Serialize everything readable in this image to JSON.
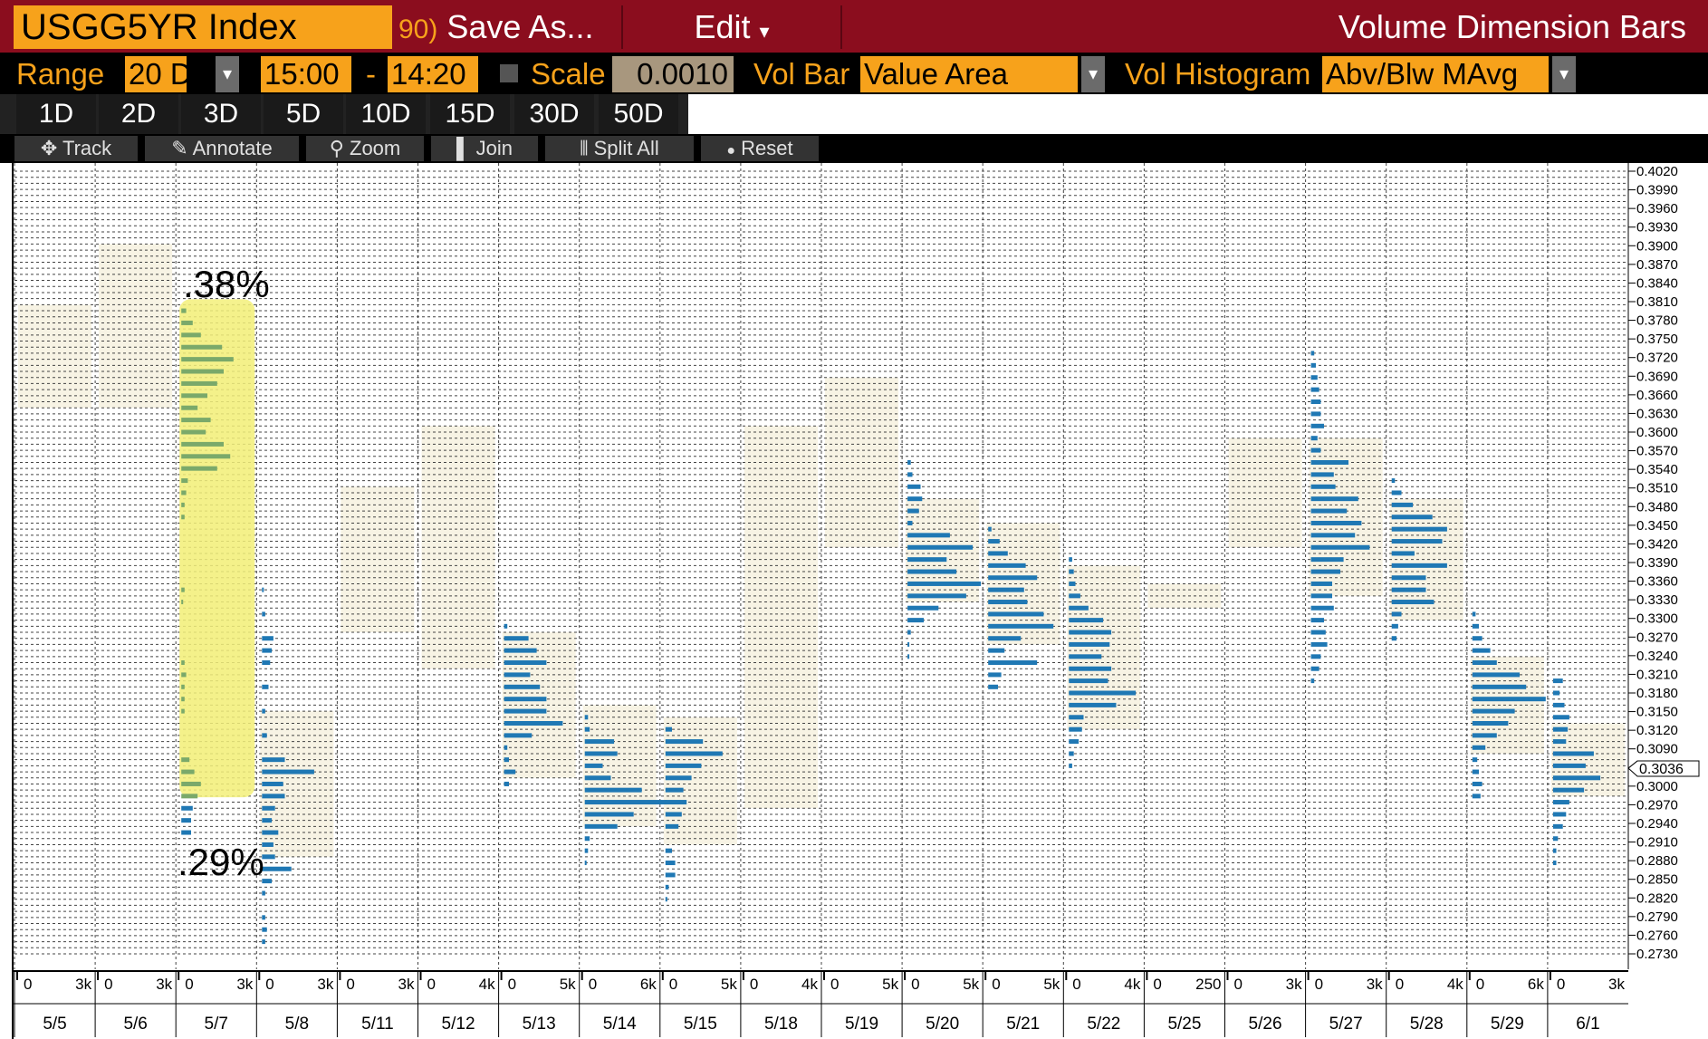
{
  "header": {
    "ticker": "USGG5YR  Index",
    "save_num": "90)",
    "save_label": "Save As...",
    "edit_label": "Edit",
    "edit_arrow": "▾",
    "window_title": "Volume Dimension Bars"
  },
  "settings": {
    "range_label": "Range",
    "range_value": "20 D",
    "time_start": "15:00",
    "dash": "-",
    "time_end": "14:20",
    "scale_label": "Scale",
    "scale_value": "0.0010",
    "vol_bar_label": "Vol Bar",
    "vol_bar_value": "Value Area",
    "vol_hist_label": "Vol Histogram",
    "vol_hist_value": "Abv/Blw MAvg",
    "dropdown_arrow": "▾"
  },
  "periods": [
    "1D",
    "2D",
    "3D",
    "5D",
    "10D",
    "15D",
    "30D",
    "50D"
  ],
  "toolbar": [
    {
      "icon": "crosshair-icon",
      "glyph": "✥",
      "label": "Track"
    },
    {
      "icon": "pencil-icon",
      "glyph": "✎",
      "label": "Annotate"
    },
    {
      "icon": "magnifier-icon",
      "glyph": "⚲",
      "label": "Zoom"
    },
    {
      "icon": "join-icon",
      "glyph": "▌",
      "label": "Join"
    },
    {
      "icon": "split-icon",
      "glyph": "⫴",
      "label": "Split All"
    },
    {
      "icon": "reset-icon",
      "glyph": "●",
      "label": "Reset"
    }
  ],
  "annotations": {
    "high": ".38%",
    "low": ".29%"
  },
  "colors": {
    "accent": "#f7a21b",
    "title_bg": "#8b0d1e",
    "bar": "#1f78b4",
    "highlight": "#f3f07a",
    "highlight_bar": "#7aa96a"
  },
  "chart_data": {
    "type": "bar",
    "orientation": "horizontal-volume-profile",
    "y_axis": {
      "ylim": [
        0.273,
        0.402
      ],
      "tick_step": 0.001,
      "ticks": [
        "0.4020",
        "0.3990",
        "0.3960",
        "0.3930",
        "0.3900",
        "0.3870",
        "0.3840",
        "0.3810",
        "0.3780",
        "0.3750",
        "0.3720",
        "0.3690",
        "0.3660",
        "0.3630",
        "0.3600",
        "0.3570",
        "0.3540",
        "0.3510",
        "0.3480",
        "0.3450",
        "0.3420",
        "0.3390",
        "0.3360",
        "0.3330",
        "0.3300",
        "0.3270",
        "0.3240",
        "0.3210",
        "0.3180",
        "0.3150",
        "0.3120",
        "0.3090",
        "0.3060",
        "0.3000",
        "0.2970",
        "0.2940",
        "0.2910",
        "0.2880",
        "0.2850",
        "0.2820",
        "0.2790",
        "0.2760",
        "0.2730"
      ],
      "current_value": "0.3036"
    },
    "highlight": {
      "date": "5/7",
      "high": 0.38,
      "low": 0.3
    },
    "days": [
      {
        "date": "5/5",
        "scale_labels": [
          "0",
          "3k"
        ],
        "value_area": [
          0.363,
          0.38
        ],
        "bins": []
      },
      {
        "date": "5/6",
        "scale_labels": [
          "0",
          "3k"
        ],
        "value_area": [
          0.363,
          0.39
        ],
        "bins": []
      },
      {
        "date": "5/7",
        "scale_labels": [
          "0",
          "3k"
        ],
        "value_area": [
          0.3,
          0.38
        ],
        "bins": [
          [
            0.379,
            0.3
          ],
          [
            0.377,
            0.7
          ],
          [
            0.375,
            1.2
          ],
          [
            0.373,
            2.5
          ],
          [
            0.371,
            3.2
          ],
          [
            0.369,
            2.6
          ],
          [
            0.367,
            2.2
          ],
          [
            0.365,
            1.6
          ],
          [
            0.363,
            1.0
          ],
          [
            0.361,
            1.8
          ],
          [
            0.359,
            1.5
          ],
          [
            0.357,
            2.6
          ],
          [
            0.355,
            3.0
          ],
          [
            0.353,
            2.2
          ],
          [
            0.351,
            0.4
          ],
          [
            0.349,
            0.3
          ],
          [
            0.347,
            0.2
          ],
          [
            0.345,
            0.2
          ],
          [
            0.333,
            0.2
          ],
          [
            0.331,
            0.1
          ],
          [
            0.321,
            0.2
          ],
          [
            0.319,
            0.3
          ],
          [
            0.317,
            0.2
          ],
          [
            0.315,
            0.2
          ],
          [
            0.313,
            0.2
          ],
          [
            0.305,
            0.5
          ],
          [
            0.303,
            0.8
          ],
          [
            0.301,
            1.2
          ],
          [
            0.299,
            1.0
          ],
          [
            0.297,
            0.7
          ],
          [
            0.295,
            0.6
          ],
          [
            0.293,
            0.6
          ]
        ]
      },
      {
        "date": "5/8",
        "scale_labels": [
          "0",
          "3k"
        ],
        "value_area": [
          0.289,
          0.313
        ],
        "bins": [
          [
            0.333,
            0.1
          ],
          [
            0.329,
            0.2
          ],
          [
            0.325,
            0.7
          ],
          [
            0.323,
            0.6
          ],
          [
            0.321,
            0.5
          ],
          [
            0.317,
            0.4
          ],
          [
            0.313,
            0.2
          ],
          [
            0.309,
            0.3
          ],
          [
            0.305,
            1.4
          ],
          [
            0.303,
            3.2
          ],
          [
            0.301,
            1.3
          ],
          [
            0.299,
            1.4
          ],
          [
            0.297,
            0.8
          ],
          [
            0.295,
            0.6
          ],
          [
            0.293,
            1.0
          ],
          [
            0.291,
            0.7
          ],
          [
            0.289,
            0.8
          ],
          [
            0.287,
            1.8
          ],
          [
            0.285,
            0.6
          ],
          [
            0.283,
            0.2
          ],
          [
            0.279,
            0.2
          ],
          [
            0.277,
            0.3
          ],
          [
            0.275,
            0.2
          ]
        ]
      },
      {
        "date": "5/11",
        "scale_labels": [
          "0",
          "3k"
        ],
        "value_area": [
          0.326,
          0.35
        ],
        "bins": []
      },
      {
        "date": "5/12",
        "scale_labels": [
          "0",
          "4k"
        ],
        "value_area": [
          0.32,
          0.36
        ],
        "bins": []
      },
      {
        "date": "5/13",
        "scale_labels": [
          "0",
          "5k"
        ],
        "value_area": [
          0.302,
          0.326
        ],
        "bins": [
          [
            0.327,
            0.2
          ],
          [
            0.325,
            1.5
          ],
          [
            0.323,
            2.0
          ],
          [
            0.321,
            2.6
          ],
          [
            0.319,
            1.6
          ],
          [
            0.317,
            2.2
          ],
          [
            0.315,
            2.6
          ],
          [
            0.313,
            2.6
          ],
          [
            0.311,
            3.6
          ],
          [
            0.309,
            1.7
          ],
          [
            0.307,
            0.2
          ],
          [
            0.305,
            0.3
          ],
          [
            0.303,
            0.7
          ],
          [
            0.301,
            0.3
          ]
        ]
      },
      {
        "date": "5/14",
        "scale_labels": [
          "0",
          "6k"
        ],
        "value_area": [
          0.294,
          0.314
        ],
        "bins": [
          [
            0.312,
            0.2
          ],
          [
            0.31,
            0.3
          ],
          [
            0.308,
            1.8
          ],
          [
            0.306,
            2.0
          ],
          [
            0.304,
            1.1
          ],
          [
            0.302,
            1.6
          ],
          [
            0.3,
            3.5
          ],
          [
            0.298,
            5.0
          ],
          [
            0.296,
            3.0
          ],
          [
            0.294,
            2.0
          ],
          [
            0.292,
            0.3
          ],
          [
            0.29,
            0.2
          ],
          [
            0.288,
            0.1
          ]
        ]
      },
      {
        "date": "5/15",
        "scale_labels": [
          "0",
          "5k"
        ],
        "value_area": [
          0.291,
          0.312
        ],
        "bins": [
          [
            0.31,
            0.4
          ],
          [
            0.308,
            2.3
          ],
          [
            0.306,
            3.5
          ],
          [
            0.304,
            2.2
          ],
          [
            0.302,
            1.6
          ],
          [
            0.3,
            1.1
          ],
          [
            0.298,
            1.3
          ],
          [
            0.296,
            1.0
          ],
          [
            0.294,
            0.8
          ],
          [
            0.29,
            0.4
          ],
          [
            0.288,
            0.6
          ],
          [
            0.286,
            0.6
          ],
          [
            0.284,
            0.2
          ],
          [
            0.282,
            0.1
          ]
        ]
      },
      {
        "date": "5/18",
        "scale_labels": [
          "0",
          "4k"
        ],
        "value_area": [
          0.297,
          0.36
        ],
        "bins": []
      },
      {
        "date": "5/19",
        "scale_labels": [
          "0",
          "5k"
        ],
        "value_area": [
          0.34,
          0.368
        ],
        "bins": []
      },
      {
        "date": "5/20",
        "scale_labels": [
          "0",
          "5k"
        ],
        "value_area": [
          0.331,
          0.348
        ],
        "bins": [
          [
            0.354,
            0.2
          ],
          [
            0.352,
            0.3
          ],
          [
            0.35,
            0.8
          ],
          [
            0.348,
            0.9
          ],
          [
            0.346,
            0.7
          ],
          [
            0.344,
            0.3
          ],
          [
            0.342,
            2.6
          ],
          [
            0.34,
            4.0
          ],
          [
            0.338,
            2.4
          ],
          [
            0.336,
            3.0
          ],
          [
            0.334,
            4.5
          ],
          [
            0.332,
            3.6
          ],
          [
            0.33,
            1.9
          ],
          [
            0.328,
            1.0
          ],
          [
            0.326,
            0.2
          ],
          [
            0.324,
            0.1
          ],
          [
            0.322,
            0.1
          ]
        ]
      },
      {
        "date": "5/21",
        "scale_labels": [
          "0",
          "5k"
        ],
        "value_area": [
          0.324,
          0.344
        ],
        "bins": [
          [
            0.343,
            0.2
          ],
          [
            0.341,
            0.7
          ],
          [
            0.339,
            1.2
          ],
          [
            0.337,
            2.3
          ],
          [
            0.335,
            3.0
          ],
          [
            0.333,
            2.2
          ],
          [
            0.331,
            2.4
          ],
          [
            0.329,
            3.4
          ],
          [
            0.327,
            4.0
          ],
          [
            0.325,
            2.0
          ],
          [
            0.323,
            1.0
          ],
          [
            0.321,
            3.0
          ],
          [
            0.319,
            0.8
          ],
          [
            0.317,
            0.6
          ]
        ]
      },
      {
        "date": "5/22",
        "scale_labels": [
          "0",
          "4k"
        ],
        "value_area": [
          0.31,
          0.337
        ],
        "bins": [
          [
            0.338,
            0.2
          ],
          [
            0.336,
            0.3
          ],
          [
            0.334,
            0.4
          ],
          [
            0.332,
            0.7
          ],
          [
            0.33,
            1.2
          ],
          [
            0.328,
            2.1
          ],
          [
            0.326,
            2.6
          ],
          [
            0.324,
            2.5
          ],
          [
            0.322,
            2.0
          ],
          [
            0.32,
            2.6
          ],
          [
            0.318,
            2.4
          ],
          [
            0.316,
            4.1
          ],
          [
            0.314,
            2.9
          ],
          [
            0.312,
            0.9
          ],
          [
            0.31,
            0.8
          ],
          [
            0.308,
            0.6
          ],
          [
            0.306,
            0.3
          ],
          [
            0.304,
            0.2
          ]
        ]
      },
      {
        "date": "5/25",
        "scale_labels": [
          "0",
          "250"
        ],
        "value_area": [
          0.33,
          0.334
        ],
        "bins": []
      },
      {
        "date": "5/26",
        "scale_labels": [
          "0",
          "3k"
        ],
        "value_area": [
          0.34,
          0.358
        ],
        "bins": []
      },
      {
        "date": "5/27",
        "scale_labels": [
          "0",
          "3k"
        ],
        "value_area": [
          0.332,
          0.358
        ],
        "bins": [
          [
            0.372,
            0.2
          ],
          [
            0.37,
            0.3
          ],
          [
            0.368,
            0.4
          ],
          [
            0.366,
            0.5
          ],
          [
            0.364,
            0.6
          ],
          [
            0.362,
            0.6
          ],
          [
            0.36,
            0.8
          ],
          [
            0.358,
            0.4
          ],
          [
            0.356,
            0.6
          ],
          [
            0.354,
            2.3
          ],
          [
            0.352,
            1.4
          ],
          [
            0.35,
            1.5
          ],
          [
            0.348,
            2.9
          ],
          [
            0.346,
            2.2
          ],
          [
            0.344,
            3.1
          ],
          [
            0.342,
            2.7
          ],
          [
            0.34,
            3.6
          ],
          [
            0.338,
            2.0
          ],
          [
            0.336,
            1.8
          ],
          [
            0.334,
            1.3
          ],
          [
            0.332,
            1.3
          ],
          [
            0.33,
            1.4
          ],
          [
            0.328,
            0.8
          ],
          [
            0.326,
            0.9
          ],
          [
            0.324,
            1.0
          ],
          [
            0.322,
            0.6
          ],
          [
            0.32,
            0.5
          ],
          [
            0.318,
            0.2
          ]
        ]
      },
      {
        "date": "5/28",
        "scale_labels": [
          "0",
          "4k"
        ],
        "value_area": [
          0.328,
          0.348
        ],
        "bins": [
          [
            0.351,
            0.2
          ],
          [
            0.349,
            0.6
          ],
          [
            0.347,
            1.3
          ],
          [
            0.345,
            2.5
          ],
          [
            0.343,
            3.4
          ],
          [
            0.341,
            3.1
          ],
          [
            0.339,
            1.4
          ],
          [
            0.337,
            3.4
          ],
          [
            0.335,
            2.1
          ],
          [
            0.333,
            2.1
          ],
          [
            0.331,
            2.6
          ],
          [
            0.329,
            0.6
          ],
          [
            0.327,
            0.4
          ],
          [
            0.325,
            0.3
          ]
        ]
      },
      {
        "date": "5/29",
        "scale_labels": [
          "0",
          "6k"
        ],
        "value_area": [
          0.306,
          0.322
        ],
        "bins": [
          [
            0.329,
            0.2
          ],
          [
            0.327,
            0.4
          ],
          [
            0.325,
            0.6
          ],
          [
            0.323,
            1.1
          ],
          [
            0.321,
            1.5
          ],
          [
            0.319,
            2.9
          ],
          [
            0.317,
            3.3
          ],
          [
            0.315,
            4.5
          ],
          [
            0.313,
            2.6
          ],
          [
            0.311,
            2.2
          ],
          [
            0.309,
            1.5
          ],
          [
            0.307,
            0.8
          ],
          [
            0.305,
            0.3
          ],
          [
            0.303,
            0.4
          ],
          [
            0.301,
            0.6
          ],
          [
            0.299,
            0.5
          ]
        ]
      },
      {
        "date": "6/1",
        "scale_labels": [
          "0",
          "3k"
        ],
        "value_area": [
          0.299,
          0.311
        ],
        "bins": [
          [
            0.318,
            0.6
          ],
          [
            0.316,
            0.4
          ],
          [
            0.314,
            0.7
          ],
          [
            0.312,
            1.0
          ],
          [
            0.31,
            0.9
          ],
          [
            0.308,
            0.8
          ],
          [
            0.306,
            2.5
          ],
          [
            0.304,
            2.0
          ],
          [
            0.302,
            2.9
          ],
          [
            0.3,
            1.9
          ],
          [
            0.298,
            1.0
          ],
          [
            0.296,
            0.8
          ],
          [
            0.294,
            0.6
          ],
          [
            0.292,
            0.3
          ],
          [
            0.29,
            0.2
          ],
          [
            0.288,
            0.2
          ]
        ]
      }
    ]
  }
}
